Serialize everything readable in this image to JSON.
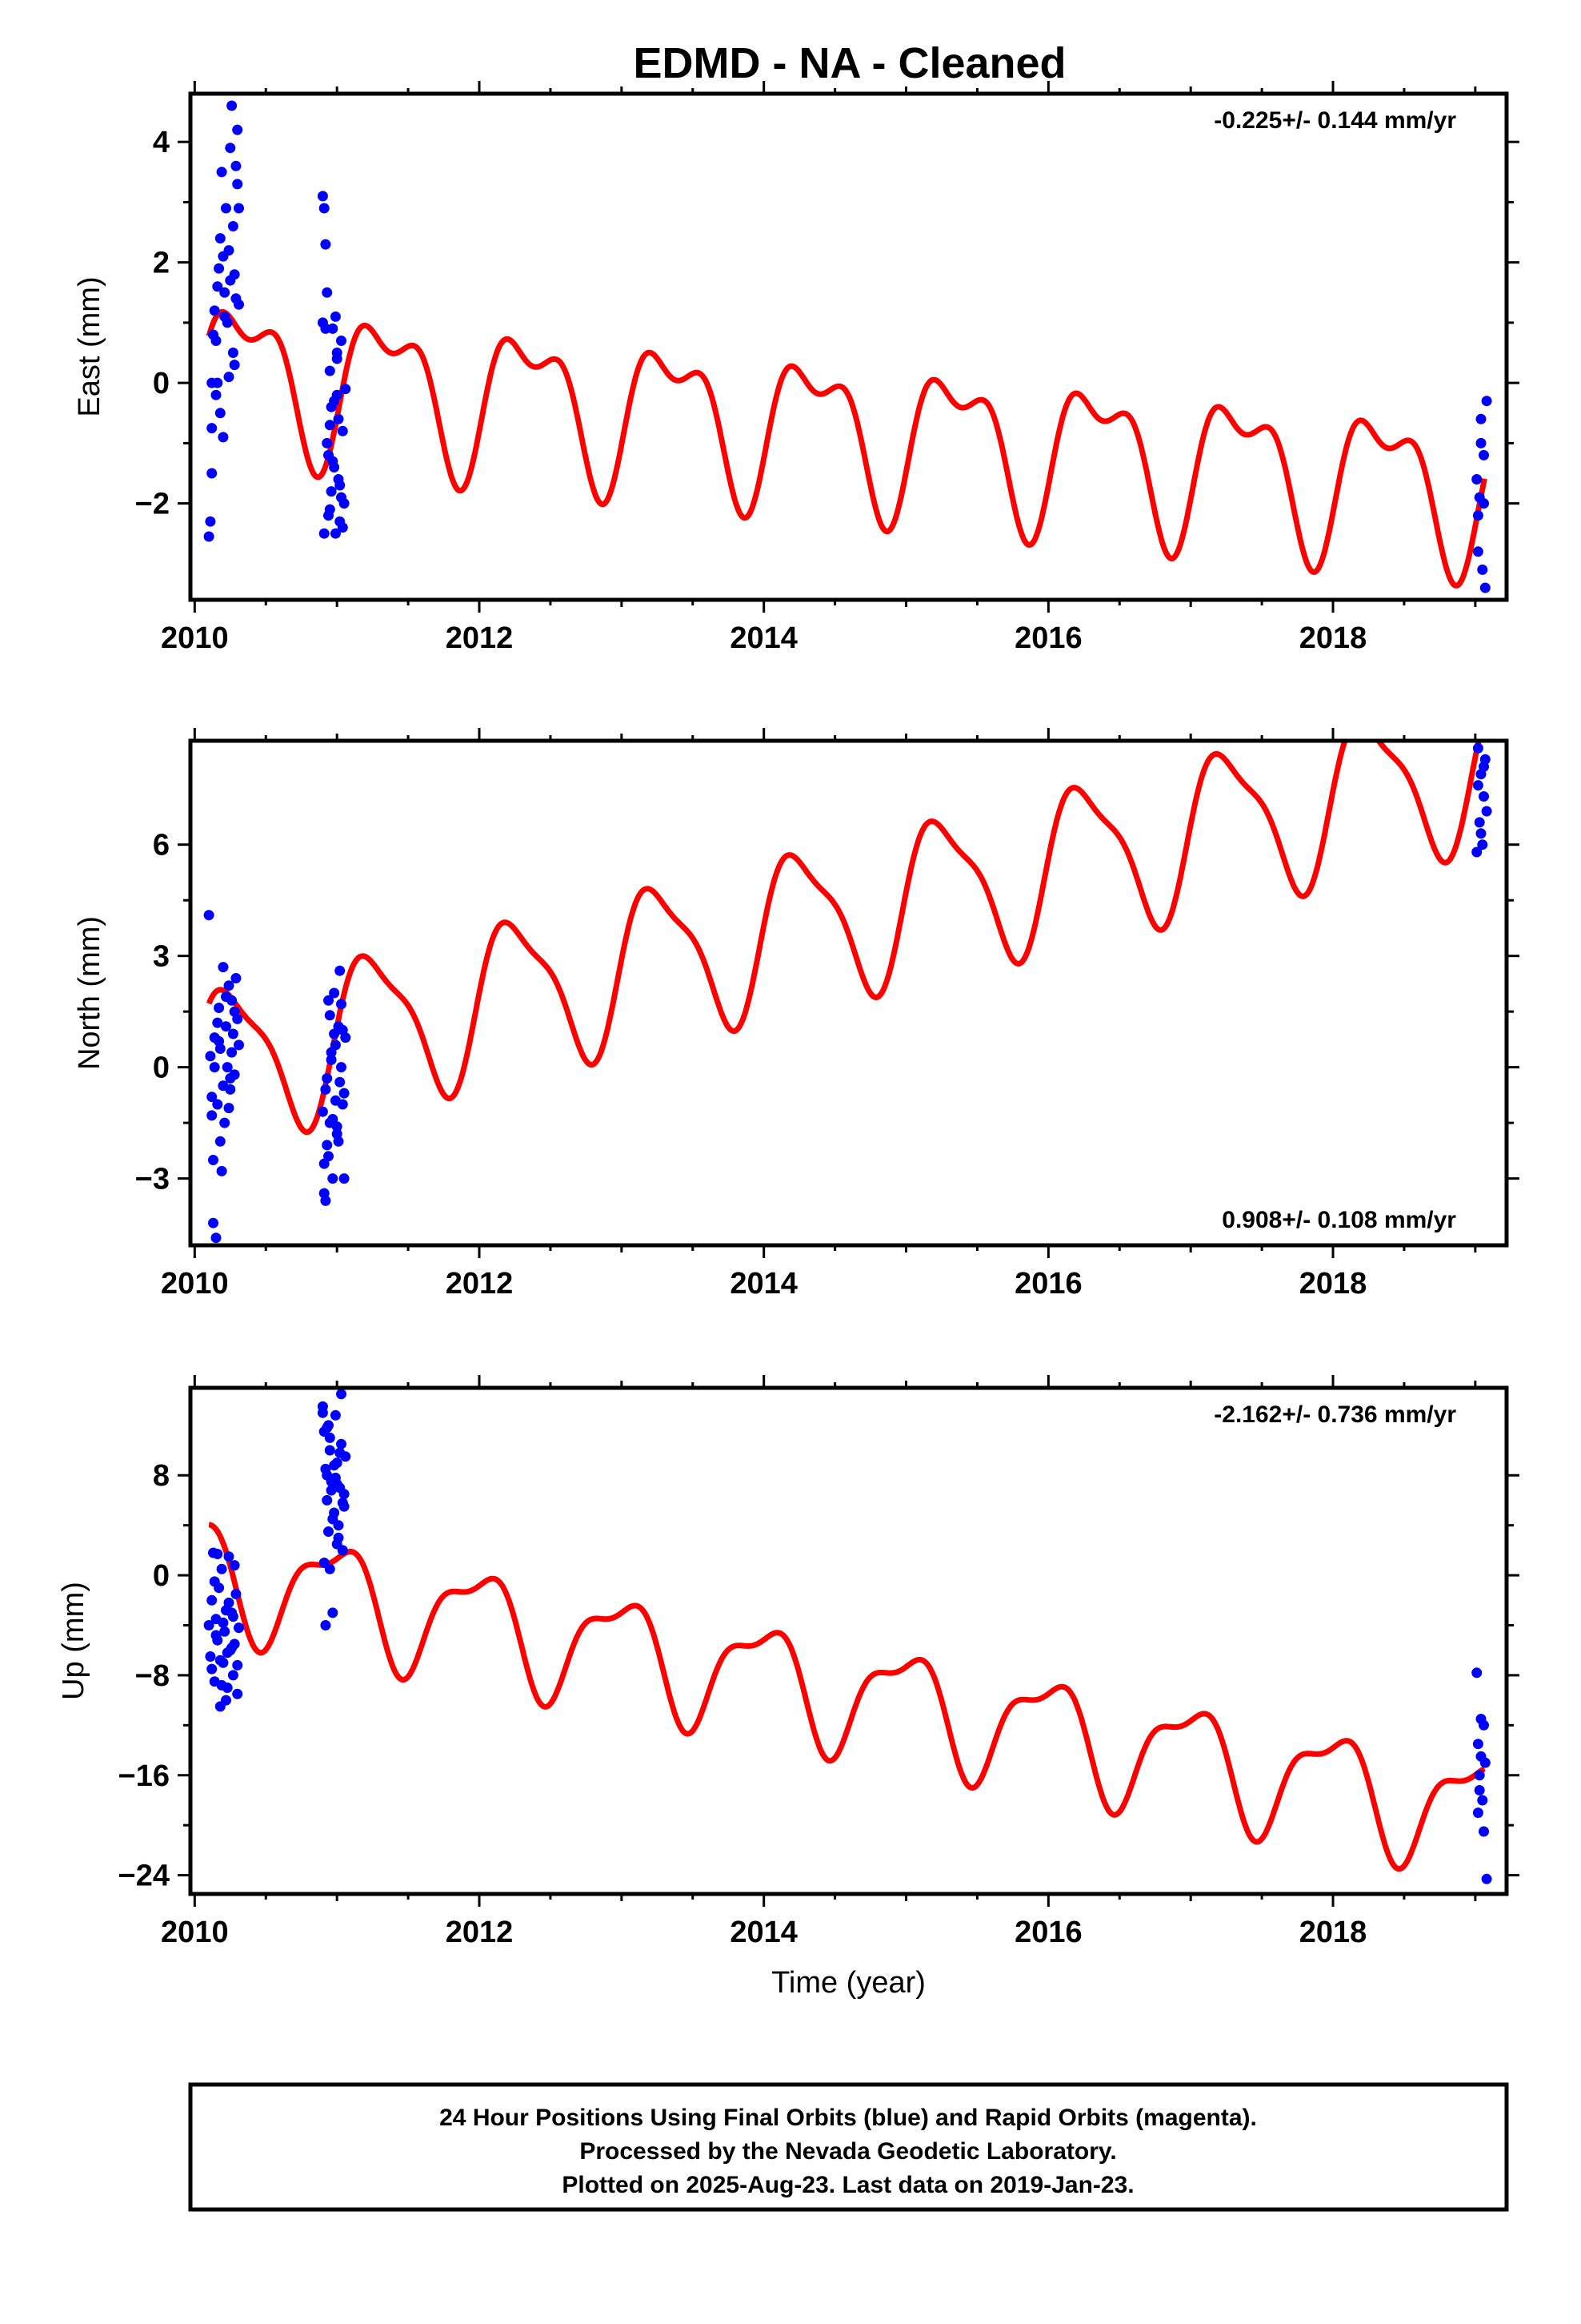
{
  "title": "EDMD  - NA - Cleaned",
  "footer": {
    "lines": [
      "24 Hour Positions Using Final Orbits (blue) and Rapid Orbits (magenta).",
      "Processed by the Nevada Geodetic Laboratory.",
      "Plotted on 2025-Aug-23. Last data on 2019-Jan-23."
    ]
  },
  "colors": {
    "points": "#0000ff",
    "model": "#ff0000",
    "frame": "#000000"
  },
  "chart_data": [
    {
      "type": "scatter",
      "ylabel": "East (mm)",
      "xlabel": "",
      "xlim": [
        2009.97,
        2019.22
      ],
      "ylim": [
        -3.6,
        4.8
      ],
      "xticks": [
        2010,
        2012,
        2014,
        2016,
        2018
      ],
      "yticks": [
        4,
        2,
        0,
        -2
      ],
      "rate_label": "-0.225+/- 0.144 mm/yr",
      "rate_position": "top-right",
      "model": {
        "offset": 0.25,
        "rate": -0.225,
        "annual_amp": 1.1,
        "annual_phase": 0.0,
        "semi_amp": 0.55,
        "semi_phase": 1.3
      },
      "series": [
        {
          "style": "points",
          "x": [
            2010.1,
            2010.11,
            2010.12,
            2010.12,
            2010.13,
            2010.14,
            2010.15,
            2010.16,
            2010.17,
            2010.18,
            2010.19,
            2010.2,
            2010.21,
            2010.22,
            2010.23,
            2010.24,
            2010.25,
            2010.26,
            2010.27,
            2010.28,
            2010.29,
            2010.3,
            2010.31,
            2010.12,
            2010.15,
            2010.18,
            2010.21,
            2010.24,
            2010.27,
            2010.2,
            2010.16,
            2010.25,
            2010.29,
            2010.3,
            2010.31,
            2010.28,
            2010.9,
            2010.91,
            2010.92,
            2010.93,
            2010.94,
            2010.95,
            2010.96,
            2010.97,
            2010.98,
            2010.99,
            2011.0,
            2011.01,
            2011.02,
            2011.03,
            2011.04,
            2011.05,
            2011.06,
            2010.91,
            2010.93,
            2010.95,
            2010.97,
            2010.99,
            2011.01,
            2011.03,
            2010.92,
            2010.94,
            2010.96,
            2010.98,
            2011.0,
            2011.02,
            2011.04,
            2010.9,
            2010.95,
            2011.0,
            2019.01,
            2019.02,
            2019.03,
            2019.04,
            2019.05,
            2019.06,
            2019.07,
            2019.08,
            2019.02,
            2019.04,
            2019.06
          ],
          "y": [
            -2.55,
            -2.3,
            -1.5,
            -0.75,
            0.8,
            1.2,
            -0.2,
            1.6,
            1.9,
            2.4,
            3.5,
            2.1,
            1.5,
            2.9,
            1.0,
            0.1,
            3.9,
            4.6,
            2.6,
            1.8,
            1.4,
            3.3,
            2.9,
            0.0,
            0.7,
            -0.5,
            1.1,
            2.2,
            0.5,
            -0.9,
            0.0,
            1.7,
            3.6,
            4.2,
            1.3,
            0.3,
            3.1,
            2.9,
            2.3,
            1.5,
            -1.2,
            -2.1,
            -1.8,
            0.9,
            -0.3,
            -2.5,
            0.4,
            -1.6,
            -2.3,
            0.7,
            -0.8,
            -2.0,
            -0.1,
            -2.5,
            -1.0,
            0.2,
            -1.3,
            1.1,
            -0.6,
            -1.9,
            0.9,
            -2.2,
            -0.4,
            -1.4,
            0.5,
            -1.7,
            -2.4,
            1.0,
            -0.7,
            -0.2,
            -1.6,
            -2.8,
            -1.9,
            -0.6,
            -3.1,
            -1.2,
            -3.4,
            -0.3,
            -2.2,
            -1.0,
            -2.0
          ]
        },
        {
          "style": "line"
        }
      ]
    },
    {
      "type": "scatter",
      "ylabel": "North (mm)",
      "xlabel": "",
      "xlim": [
        2009.97,
        2019.22
      ],
      "ylim": [
        -4.8,
        8.8
      ],
      "xticks": [
        2010,
        2012,
        2014,
        2016,
        2018
      ],
      "yticks": [
        6,
        3,
        0,
        -3
      ],
      "rate_label": "0.908+/- 0.108 mm/yr",
      "rate_position": "bottom-right",
      "model": {
        "offset": 0.05,
        "rate": 0.908,
        "annual_amp": 2.0,
        "annual_phase": 0.6,
        "semi_amp": 0.55,
        "semi_phase": 1.8
      },
      "series": [
        {
          "style": "points",
          "x": [
            2010.1,
            2010.11,
            2010.12,
            2010.13,
            2010.14,
            2010.15,
            2010.16,
            2010.17,
            2010.18,
            2010.19,
            2010.2,
            2010.21,
            2010.22,
            2010.23,
            2010.24,
            2010.25,
            2010.26,
            2010.27,
            2010.28,
            2010.29,
            2010.3,
            2010.31,
            2010.12,
            2010.14,
            2010.16,
            2010.18,
            2010.2,
            2010.22,
            2010.24,
            2010.26,
            2010.28,
            2010.13,
            2010.17,
            2010.25,
            2010.9,
            2010.91,
            2010.92,
            2010.93,
            2010.94,
            2010.95,
            2010.96,
            2010.97,
            2010.98,
            2010.99,
            2011.0,
            2011.01,
            2011.02,
            2011.03,
            2011.04,
            2011.05,
            2011.06,
            2010.91,
            2010.93,
            2010.95,
            2010.97,
            2010.99,
            2011.01,
            2011.03,
            2011.05,
            2010.92,
            2010.96,
            2011.0,
            2011.04,
            2010.94,
            2010.98,
            2011.02,
            2019.01,
            2019.02,
            2019.03,
            2019.04,
            2019.05,
            2019.06,
            2019.07,
            2019.08,
            2019.02,
            2019.04,
            2019.06
          ],
          "y": [
            4.1,
            0.3,
            -1.3,
            -2.5,
            0.8,
            -4.6,
            -1.0,
            1.6,
            0.5,
            -2.8,
            2.7,
            -1.5,
            1.1,
            0.0,
            2.2,
            -0.6,
            1.8,
            0.9,
            -0.2,
            2.4,
            1.3,
            0.6,
            -0.8,
            0.0,
            1.2,
            -2.0,
            -0.5,
            1.9,
            -1.1,
            0.4,
            1.5,
            -4.2,
            0.7,
            -0.3,
            -1.2,
            -3.4,
            -0.6,
            -2.1,
            1.8,
            -1.5,
            0.4,
            -3.0,
            2.0,
            -0.9,
            -1.8,
            1.1,
            2.6,
            0.0,
            -1.0,
            -3.0,
            0.8,
            -2.6,
            -0.3,
            1.4,
            -1.4,
            0.6,
            -2.0,
            1.7,
            -0.7,
            -3.6,
            0.2,
            -1.6,
            1.0,
            -2.4,
            0.9,
            -0.4,
            5.8,
            8.6,
            6.6,
            7.9,
            6.0,
            7.3,
            8.3,
            6.9,
            7.6,
            6.3,
            8.1
          ]
        },
        {
          "style": "line"
        }
      ]
    },
    {
      "type": "scatter",
      "ylabel": "Up (mm)",
      "xlabel": "Time (year)",
      "xlim": [
        2009.97,
        2019.22
      ],
      "ylim": [
        -25.5,
        15.0
      ],
      "xticks": [
        2010,
        2012,
        2014,
        2016,
        2018
      ],
      "yticks": [
        8,
        0,
        -8,
        -16,
        -24
      ],
      "rate_label": "-2.162+/- 0.736 mm/yr",
      "rate_position": "top-right",
      "model": {
        "offset": 0.3,
        "rate": -2.162,
        "annual_amp": 4.2,
        "annual_phase": 2.3,
        "semi_amp": 1.6,
        "semi_phase": 0.4
      },
      "series": [
        {
          "style": "points",
          "x": [
            2010.1,
            2010.11,
            2010.12,
            2010.13,
            2010.14,
            2010.15,
            2010.16,
            2010.17,
            2010.18,
            2010.19,
            2010.2,
            2010.21,
            2010.22,
            2010.23,
            2010.24,
            2010.25,
            2010.26,
            2010.27,
            2010.28,
            2010.29,
            2010.3,
            2010.31,
            2010.12,
            2010.14,
            2010.16,
            2010.18,
            2010.2,
            2010.22,
            2010.24,
            2010.26,
            2010.28,
            2010.3,
            2010.15,
            2010.19,
            2010.23,
            2010.27,
            2010.9,
            2010.91,
            2010.92,
            2010.93,
            2010.94,
            2010.95,
            2010.96,
            2010.97,
            2010.98,
            2010.99,
            2011.0,
            2011.01,
            2011.02,
            2011.03,
            2011.04,
            2011.05,
            2011.06,
            2010.91,
            2010.93,
            2010.95,
            2010.97,
            2010.99,
            2011.01,
            2011.03,
            2011.05,
            2010.92,
            2010.94,
            2010.96,
            2010.98,
            2011.0,
            2011.02,
            2011.04,
            2010.9,
            2010.95,
            2011.0,
            2010.93,
            2019.01,
            2019.02,
            2019.03,
            2019.04,
            2019.05,
            2019.06,
            2019.07,
            2019.08,
            2019.02,
            2019.04,
            2019.06,
            2019.03
          ],
          "y": [
            -4.0,
            -6.5,
            -2.0,
            1.8,
            -8.5,
            -3.5,
            -5.2,
            -1.0,
            -10.5,
            0.5,
            -7.0,
            -4.5,
            -2.8,
            -9.0,
            1.5,
            -6.0,
            -3.0,
            -8.0,
            -5.5,
            -1.5,
            -9.5,
            -4.2,
            -7.5,
            -0.5,
            1.7,
            -6.8,
            -3.8,
            -10.0,
            -2.2,
            -5.8,
            0.8,
            -7.2,
            -4.8,
            -8.8,
            -6.2,
            -3.3,
            13.5,
            11.5,
            8.5,
            6.0,
            3.5,
            10.0,
            7.5,
            -3.0,
            5.0,
            12.8,
            9.0,
            4.0,
            7.0,
            14.5,
            2.0,
            6.5,
            9.5,
            1.0,
            8.0,
            11.0,
            4.5,
            7.8,
            3.0,
            10.5,
            5.5,
            -4.0,
            12.0,
            6.8,
            8.8,
            2.5,
            9.8,
            5.8,
            13.0,
            0.5,
            7.3,
            11.8,
            -7.8,
            -13.5,
            -16.0,
            -11.5,
            -18.0,
            -20.5,
            -15.0,
            -24.3,
            -19.0,
            -14.5,
            -12.0,
            -17.2
          ]
        },
        {
          "style": "line"
        }
      ]
    }
  ]
}
